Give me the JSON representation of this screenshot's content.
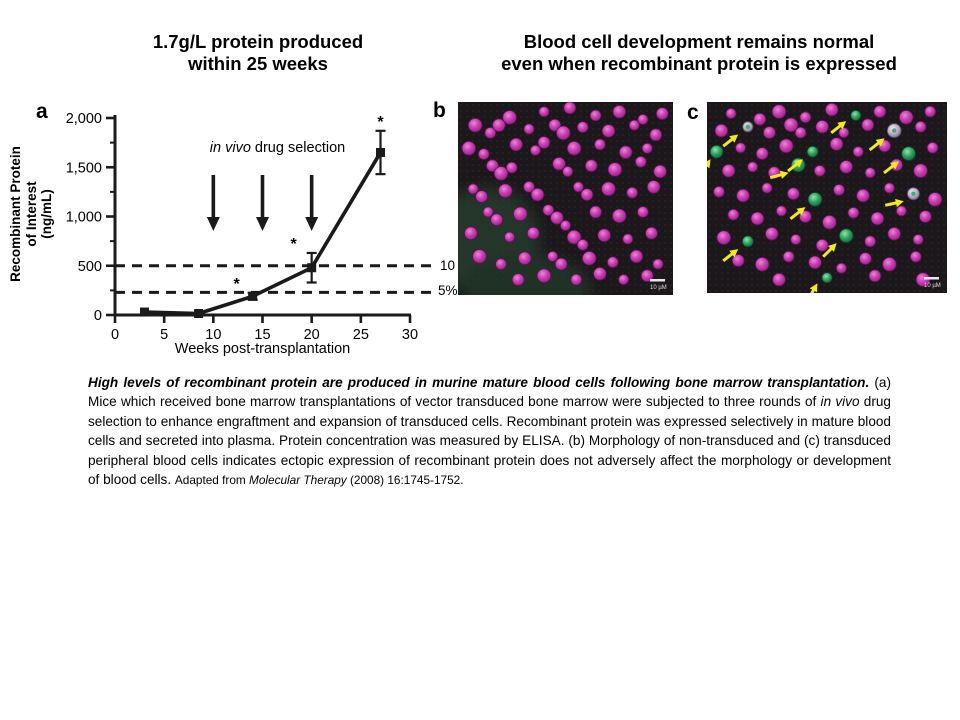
{
  "slide": {
    "left_title_line1": "1.7g/L protein produced",
    "left_title_line2": "within 25 weeks",
    "right_title_line1": "Blood cell development remains normal",
    "right_title_line2": "even when recombinant protein is expressed"
  },
  "panel_labels": {
    "a": "a",
    "b": "b",
    "c": "c"
  },
  "colors": {
    "line": "#1a1a1a",
    "cell_magenta": "#cc41b4",
    "cell_green": "#2fa35e",
    "cell_gray": "#b7aec6",
    "arrow_yellow": "#f2ea1f"
  },
  "chart_data": {
    "type": "line",
    "title": "1.7g/L protein produced within 25 weeks",
    "xlabel": "Weeks post-transplantation",
    "ylabel": "Recombinant Protein of Interest (ng/mL)",
    "ylabel_lines": [
      "Recombinant Protein",
      "of Interest",
      "(ng/mL)"
    ],
    "xlim": [
      0,
      30
    ],
    "ylim": [
      0,
      2000
    ],
    "xticks": [
      0,
      5,
      10,
      15,
      20,
      25,
      30
    ],
    "yticks": [
      0,
      500,
      1000,
      1500,
      2000
    ],
    "ytick_labels": [
      "0",
      "500",
      "1,000",
      "1,500",
      "2,000"
    ],
    "yticks_minor": [
      250,
      750,
      1250,
      1750
    ],
    "grid": false,
    "legend": null,
    "series": [
      {
        "name": "Recombinant protein of interest (ng/mL)",
        "x": [
          3,
          8.5,
          14,
          20,
          27
        ],
        "y": [
          30,
          15,
          190,
          480,
          1650
        ],
        "yerr": [
          0,
          0,
          35,
          150,
          220
        ],
        "significant": [
          false,
          false,
          true,
          true,
          true
        ],
        "marker": "square"
      }
    ],
    "annotations": {
      "drug_label_italic": "in vivo",
      "drug_label_rest": " drug selection",
      "arrow_weeks": [
        10,
        15,
        20
      ],
      "significance_marker": "*",
      "star_dx": [
        0,
        0,
        -16,
        -18,
        0
      ],
      "dashed_lines": [
        {
          "y": 500,
          "label": "10"
        },
        {
          "y": 230,
          "label": "5%"
        }
      ]
    }
  },
  "micrographs": {
    "scale_bar_label": "10 µM",
    "b": {
      "description": "non-transduced peripheral blood cells",
      "cells": [
        [
          40,
          5
        ],
        [
          52,
          3
        ],
        [
          24,
          8
        ],
        [
          64,
          7
        ],
        [
          75,
          5
        ],
        [
          86,
          9
        ],
        [
          95,
          6
        ],
        [
          8,
          12
        ],
        [
          15,
          16
        ],
        [
          19,
          12
        ],
        [
          33,
          14
        ],
        [
          45,
          12
        ],
        [
          49,
          16
        ],
        [
          58,
          13
        ],
        [
          70,
          15
        ],
        [
          82,
          12
        ],
        [
          92,
          17
        ],
        [
          5,
          24
        ],
        [
          12,
          27
        ],
        [
          27,
          22
        ],
        [
          36,
          25
        ],
        [
          40,
          21
        ],
        [
          54,
          24
        ],
        [
          66,
          22
        ],
        [
          78,
          26
        ],
        [
          88,
          24
        ],
        [
          16,
          33
        ],
        [
          20,
          37
        ],
        [
          25,
          34
        ],
        [
          47,
          32
        ],
        [
          51,
          36
        ],
        [
          62,
          33
        ],
        [
          73,
          35
        ],
        [
          85,
          31
        ],
        [
          94,
          36
        ],
        [
          7,
          45
        ],
        [
          11,
          49
        ],
        [
          22,
          46
        ],
        [
          33,
          44
        ],
        [
          37,
          48
        ],
        [
          56,
          44
        ],
        [
          60,
          48
        ],
        [
          70,
          45
        ],
        [
          81,
          47
        ],
        [
          91,
          44
        ],
        [
          14,
          57
        ],
        [
          18,
          61
        ],
        [
          29,
          58
        ],
        [
          42,
          56
        ],
        [
          46,
          60
        ],
        [
          50,
          64
        ],
        [
          64,
          57
        ],
        [
          75,
          59
        ],
        [
          86,
          57
        ],
        [
          6,
          68
        ],
        [
          24,
          70
        ],
        [
          35,
          68
        ],
        [
          54,
          70
        ],
        [
          58,
          74
        ],
        [
          68,
          69
        ],
        [
          79,
          71
        ],
        [
          90,
          68
        ],
        [
          10,
          80
        ],
        [
          20,
          84
        ],
        [
          31,
          81
        ],
        [
          44,
          80
        ],
        [
          48,
          84
        ],
        [
          61,
          81
        ],
        [
          72,
          83
        ],
        [
          83,
          80
        ],
        [
          93,
          84
        ],
        [
          28,
          92
        ],
        [
          40,
          90
        ],
        [
          55,
          92
        ],
        [
          66,
          89
        ],
        [
          77,
          92
        ],
        [
          88,
          90
        ]
      ]
    },
    "c": {
      "description": "transduced peripheral blood cells",
      "cells": [
        [
          10,
          6,
          "m"
        ],
        [
          22,
          9,
          "m"
        ],
        [
          30,
          5,
          "m"
        ],
        [
          41,
          8,
          "m"
        ],
        [
          52,
          4,
          "m"
        ],
        [
          62,
          7,
          "g"
        ],
        [
          72,
          5,
          "m"
        ],
        [
          83,
          8,
          "m"
        ],
        [
          93,
          5,
          "m"
        ],
        [
          6,
          15,
          "m"
        ],
        [
          17,
          13,
          "y"
        ],
        [
          26,
          16,
          "m"
        ],
        [
          35,
          12,
          "m"
        ],
        [
          39,
          16,
          "m"
        ],
        [
          48,
          13,
          "m"
        ],
        [
          57,
          16,
          "m"
        ],
        [
          67,
          12,
          "m"
        ],
        [
          78,
          15,
          "y"
        ],
        [
          89,
          13,
          "m"
        ],
        [
          4,
          26,
          "g"
        ],
        [
          14,
          24,
          "m"
        ],
        [
          23,
          27,
          "m"
        ],
        [
          33,
          23,
          "m"
        ],
        [
          44,
          26,
          "g"
        ],
        [
          54,
          22,
          "m"
        ],
        [
          63,
          26,
          "m"
        ],
        [
          74,
          23,
          "m"
        ],
        [
          84,
          27,
          "g"
        ],
        [
          94,
          24,
          "m"
        ],
        [
          9,
          36,
          "m"
        ],
        [
          19,
          34,
          "m"
        ],
        [
          28,
          37,
          "m"
        ],
        [
          38,
          33,
          "g"
        ],
        [
          47,
          36,
          "m"
        ],
        [
          58,
          34,
          "m"
        ],
        [
          68,
          37,
          "m"
        ],
        [
          79,
          33,
          "m"
        ],
        [
          89,
          36,
          "m"
        ],
        [
          5,
          47,
          "m"
        ],
        [
          15,
          49,
          "m"
        ],
        [
          25,
          45,
          "m"
        ],
        [
          36,
          48,
          "m"
        ],
        [
          45,
          51,
          "g"
        ],
        [
          55,
          46,
          "m"
        ],
        [
          65,
          49,
          "m"
        ],
        [
          76,
          45,
          "m"
        ],
        [
          86,
          48,
          "y"
        ],
        [
          95,
          51,
          "m"
        ],
        [
          11,
          59,
          "m"
        ],
        [
          21,
          61,
          "m"
        ],
        [
          31,
          57,
          "m"
        ],
        [
          41,
          60,
          "m"
        ],
        [
          51,
          63,
          "m"
        ],
        [
          61,
          58,
          "m"
        ],
        [
          71,
          61,
          "m"
        ],
        [
          81,
          57,
          "m"
        ],
        [
          91,
          60,
          "m"
        ],
        [
          7,
          71,
          "m"
        ],
        [
          17,
          73,
          "g"
        ],
        [
          27,
          69,
          "m"
        ],
        [
          37,
          72,
          "m"
        ],
        [
          48,
          75,
          "m"
        ],
        [
          58,
          70,
          "g"
        ],
        [
          68,
          73,
          "m"
        ],
        [
          78,
          69,
          "m"
        ],
        [
          88,
          72,
          "m"
        ],
        [
          13,
          83,
          "m"
        ],
        [
          23,
          85,
          "m"
        ],
        [
          34,
          81,
          "m"
        ],
        [
          45,
          84,
          "m"
        ],
        [
          56,
          87,
          "m"
        ],
        [
          66,
          82,
          "m"
        ],
        [
          76,
          85,
          "m"
        ],
        [
          87,
          81,
          "m"
        ],
        [
          30,
          93,
          "m"
        ],
        [
          50,
          92,
          "g"
        ],
        [
          70,
          91,
          "m"
        ],
        [
          90,
          93,
          "m"
        ]
      ],
      "arrows": [
        [
          58,
          10,
          -38
        ],
        [
          13,
          17,
          -38
        ],
        [
          1.5,
          30,
          -55
        ],
        [
          40,
          30,
          -38
        ],
        [
          80,
          31,
          -38
        ],
        [
          34,
          37,
          -15
        ],
        [
          41,
          55,
          -38
        ],
        [
          82,
          52,
          -12
        ],
        [
          13,
          77,
          -38
        ],
        [
          54,
          74,
          -45
        ],
        [
          46,
          95,
          -60
        ],
        [
          74,
          19,
          -38
        ]
      ]
    }
  },
  "caption": {
    "lead_bold_italic": "High levels of recombinant protein are produced in murine mature blood cells following bone marrow transplantation.",
    "body_1": "  (a) Mice which received bone marrow transplantations of vector transduced bone marrow were subjected to three rounds of ",
    "italic_1": "in vivo",
    "body_2": " drug selection to enhance engraftment and expansion of transduced cells.  Recombinant protein was expressed selectively in mature blood cells and secreted into plasma.  Protein concentration was measured by ELISA.  (b) Morphology of  non-transduced and (c) transduced peripheral blood cells indicates ectopic expression of recombinant protein does not adversely affect the morphology or development of blood cells. ",
    "cite_prefix": "Adapted from ",
    "cite_italic": "Molecular Therapy",
    "cite_suffix": " (2008) 16:1745-1752."
  }
}
